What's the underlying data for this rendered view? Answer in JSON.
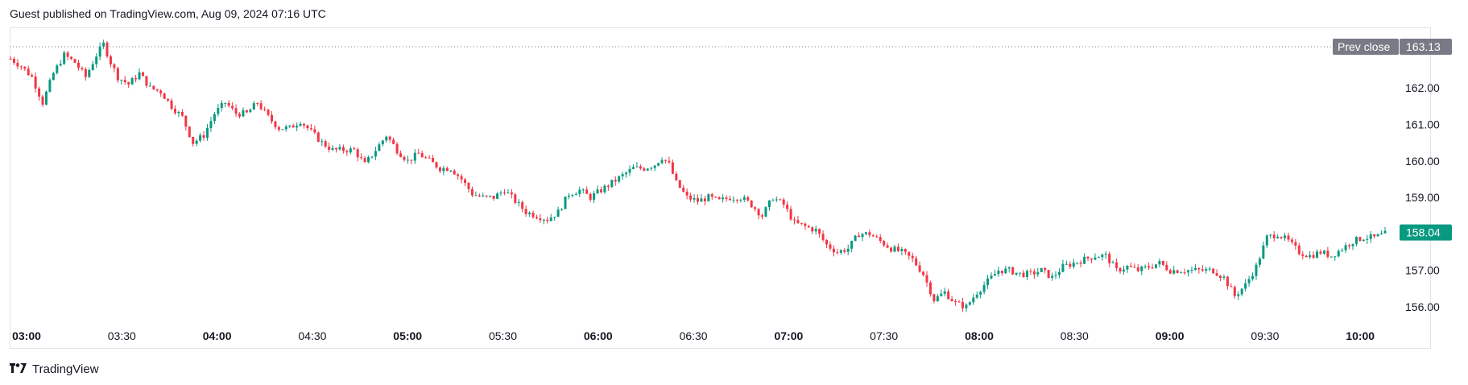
{
  "header": {
    "published": "Guest published on TradingView.com, Aug 09, 2024 07:16 UTC"
  },
  "footer": {
    "logo_icon": "tradingview-logo-icon",
    "brand": "TradingView"
  },
  "colors": {
    "up": "#089981",
    "down": "#f23645",
    "prev_close": "#787b86",
    "grid": "#e0e3eb"
  },
  "chart_data": {
    "type": "candlestick",
    "title": "",
    "xlabel": "",
    "ylabel": "",
    "ylim": [
      155.7,
      163.4
    ],
    "y_ticks": [
      "156.00",
      "157.00",
      "158.00",
      "159.00",
      "160.00",
      "161.00",
      "162.00"
    ],
    "x_ticks": [
      {
        "label": "03:00",
        "bold": true
      },
      {
        "label": "03:30",
        "bold": false
      },
      {
        "label": "04:00",
        "bold": true
      },
      {
        "label": "04:30",
        "bold": false
      },
      {
        "label": "05:00",
        "bold": true
      },
      {
        "label": "05:30",
        "bold": false
      },
      {
        "label": "06:00",
        "bold": true
      },
      {
        "label": "06:30",
        "bold": false
      },
      {
        "label": "07:00",
        "bold": true
      },
      {
        "label": "07:30",
        "bold": false
      },
      {
        "label": "08:00",
        "bold": true
      },
      {
        "label": "08:30",
        "bold": false
      },
      {
        "label": "09:00",
        "bold": true
      },
      {
        "label": "09:30",
        "bold": false
      },
      {
        "label": "10:00",
        "bold": true
      }
    ],
    "prev_close": {
      "label": "Prev close",
      "value": "163.13"
    },
    "last_price": "158.04",
    "close_path": [
      {
        "t": 0,
        "p": 162.8
      },
      {
        "t": 3,
        "p": 162.6
      },
      {
        "t": 6,
        "p": 162.3
      },
      {
        "t": 9,
        "p": 161.6
      },
      {
        "t": 12,
        "p": 162.4
      },
      {
        "t": 15,
        "p": 162.9
      },
      {
        "t": 18,
        "p": 162.7
      },
      {
        "t": 21,
        "p": 162.3
      },
      {
        "t": 24,
        "p": 162.9
      },
      {
        "t": 26,
        "p": 163.2
      },
      {
        "t": 28,
        "p": 162.7
      },
      {
        "t": 30,
        "p": 162.3
      },
      {
        "t": 33,
        "p": 162.1
      },
      {
        "t": 36,
        "p": 162.4
      },
      {
        "t": 39,
        "p": 162.0
      },
      {
        "t": 42,
        "p": 161.9
      },
      {
        "t": 45,
        "p": 161.5
      },
      {
        "t": 48,
        "p": 161.2
      },
      {
        "t": 51,
        "p": 160.5
      },
      {
        "t": 54,
        "p": 160.7
      },
      {
        "t": 57,
        "p": 161.3
      },
      {
        "t": 60,
        "p": 161.6
      },
      {
        "t": 63,
        "p": 161.3
      },
      {
        "t": 66,
        "p": 161.3
      },
      {
        "t": 69,
        "p": 161.6
      },
      {
        "t": 72,
        "p": 161.2
      },
      {
        "t": 75,
        "p": 160.9
      },
      {
        "t": 78,
        "p": 160.9
      },
      {
        "t": 81,
        "p": 161.1
      },
      {
        "t": 84,
        "p": 160.8
      },
      {
        "t": 87,
        "p": 160.5
      },
      {
        "t": 90,
        "p": 160.3
      },
      {
        "t": 93,
        "p": 160.3
      },
      {
        "t": 96,
        "p": 160.3
      },
      {
        "t": 99,
        "p": 159.9
      },
      {
        "t": 102,
        "p": 160.3
      },
      {
        "t": 105,
        "p": 160.7
      },
      {
        "t": 108,
        "p": 160.3
      },
      {
        "t": 111,
        "p": 160.0
      },
      {
        "t": 114,
        "p": 160.2
      },
      {
        "t": 117,
        "p": 160.0
      },
      {
        "t": 120,
        "p": 159.8
      },
      {
        "t": 123,
        "p": 159.8
      },
      {
        "t": 126,
        "p": 159.5
      },
      {
        "t": 129,
        "p": 159.1
      },
      {
        "t": 132,
        "p": 159.0
      },
      {
        "t": 135,
        "p": 159.0
      },
      {
        "t": 138,
        "p": 159.2
      },
      {
        "t": 141,
        "p": 158.9
      },
      {
        "t": 144,
        "p": 158.6
      },
      {
        "t": 147,
        "p": 158.5
      },
      {
        "t": 150,
        "p": 158.4
      },
      {
        "t": 153,
        "p": 158.6
      },
      {
        "t": 156,
        "p": 159.1
      },
      {
        "t": 159,
        "p": 159.2
      },
      {
        "t": 162,
        "p": 159.0
      },
      {
        "t": 165,
        "p": 159.2
      },
      {
        "t": 168,
        "p": 159.4
      },
      {
        "t": 171,
        "p": 159.6
      },
      {
        "t": 174,
        "p": 159.8
      },
      {
        "t": 177,
        "p": 159.8
      },
      {
        "t": 180,
        "p": 159.9
      },
      {
        "t": 182,
        "p": 160.1
      },
      {
        "t": 184,
        "p": 159.9
      },
      {
        "t": 186,
        "p": 159.4
      },
      {
        "t": 189,
        "p": 159.0
      },
      {
        "t": 192,
        "p": 158.9
      },
      {
        "t": 195,
        "p": 159.0
      },
      {
        "t": 198,
        "p": 158.9
      },
      {
        "t": 201,
        "p": 159.0
      },
      {
        "t": 204,
        "p": 159.0
      },
      {
        "t": 207,
        "p": 158.8
      },
      {
        "t": 210,
        "p": 158.5
      },
      {
        "t": 213,
        "p": 159.0
      },
      {
        "t": 216,
        "p": 158.8
      },
      {
        "t": 219,
        "p": 158.3
      },
      {
        "t": 222,
        "p": 158.2
      },
      {
        "t": 225,
        "p": 158.1
      },
      {
        "t": 228,
        "p": 157.7
      },
      {
        "t": 231,
        "p": 157.5
      },
      {
        "t": 234,
        "p": 157.6
      },
      {
        "t": 237,
        "p": 158.0
      },
      {
        "t": 240,
        "p": 158.0
      },
      {
        "t": 243,
        "p": 157.8
      },
      {
        "t": 246,
        "p": 157.6
      },
      {
        "t": 249,
        "p": 157.5
      },
      {
        "t": 252,
        "p": 157.3
      },
      {
        "t": 255,
        "p": 156.9
      },
      {
        "t": 258,
        "p": 156.2
      },
      {
        "t": 261,
        "p": 156.4
      },
      {
        "t": 264,
        "p": 156.1
      },
      {
        "t": 267,
        "p": 156.0
      },
      {
        "t": 270,
        "p": 156.4
      },
      {
        "t": 273,
        "p": 156.7
      },
      {
        "t": 276,
        "p": 157.0
      },
      {
        "t": 279,
        "p": 157.0
      },
      {
        "t": 282,
        "p": 156.9
      },
      {
        "t": 285,
        "p": 156.9
      },
      {
        "t": 288,
        "p": 157.0
      },
      {
        "t": 291,
        "p": 156.8
      },
      {
        "t": 294,
        "p": 157.1
      },
      {
        "t": 297,
        "p": 157.2
      },
      {
        "t": 300,
        "p": 157.3
      },
      {
        "t": 303,
        "p": 157.4
      },
      {
        "t": 306,
        "p": 157.4
      },
      {
        "t": 309,
        "p": 157.0
      },
      {
        "t": 312,
        "p": 157.1
      },
      {
        "t": 315,
        "p": 157.0
      },
      {
        "t": 318,
        "p": 157.1
      },
      {
        "t": 321,
        "p": 157.2
      },
      {
        "t": 324,
        "p": 157.0
      },
      {
        "t": 327,
        "p": 157.0
      },
      {
        "t": 330,
        "p": 157.0
      },
      {
        "t": 333,
        "p": 157.0
      },
      {
        "t": 336,
        "p": 157.0
      },
      {
        "t": 339,
        "p": 156.8
      },
      {
        "t": 342,
        "p": 156.3
      },
      {
        "t": 345,
        "p": 156.6
      },
      {
        "t": 348,
        "p": 157.1
      },
      {
        "t": 351,
        "p": 157.9
      },
      {
        "t": 354,
        "p": 158.0
      },
      {
        "t": 357,
        "p": 157.8
      },
      {
        "t": 360,
        "p": 157.5
      },
      {
        "t": 363,
        "p": 157.4
      },
      {
        "t": 366,
        "p": 157.5
      },
      {
        "t": 369,
        "p": 157.4
      },
      {
        "t": 372,
        "p": 157.6
      },
      {
        "t": 375,
        "p": 157.8
      },
      {
        "t": 378,
        "p": 157.9
      },
      {
        "t": 381,
        "p": 157.9
      },
      {
        "t": 384,
        "p": 158.0
      }
    ]
  }
}
